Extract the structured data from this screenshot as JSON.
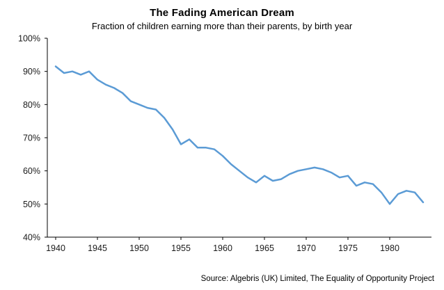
{
  "chart_data": {
    "type": "line",
    "title": "The Fading American Dream",
    "subtitle": "Fraction of children earning more than their  parents, by birth year",
    "source": "Source: Algebris (UK) Limited, The Equality of Opportunity Project",
    "xlabel": "",
    "ylabel": "",
    "x": [
      1940,
      1941,
      1942,
      1943,
      1944,
      1945,
      1946,
      1947,
      1948,
      1949,
      1950,
      1951,
      1952,
      1953,
      1954,
      1955,
      1956,
      1957,
      1958,
      1959,
      1960,
      1961,
      1962,
      1963,
      1964,
      1965,
      1966,
      1967,
      1968,
      1969,
      1970,
      1971,
      1972,
      1973,
      1974,
      1975,
      1976,
      1977,
      1978,
      1979,
      1980,
      1981,
      1982,
      1983,
      1984
    ],
    "series": [
      {
        "name": "Fraction of children earning more than their parents",
        "values": [
          91.5,
          89.5,
          90,
          89,
          90,
          87.5,
          86,
          85,
          83.5,
          81,
          80,
          79,
          78.5,
          76,
          72.5,
          68,
          69.5,
          67,
          67,
          66.5,
          64.5,
          62,
          60,
          58,
          56.5,
          58.5,
          57,
          57.5,
          59,
          60,
          60.5,
          61,
          60.5,
          59.5,
          58,
          58.5,
          55.5,
          56.5,
          56,
          53.5,
          50,
          53,
          54,
          53.5,
          50.5
        ]
      }
    ],
    "ylim": [
      40,
      100
    ],
    "yticks": [
      40,
      50,
      60,
      70,
      80,
      90,
      100
    ],
    "ytick_labels": [
      "40%",
      "50%",
      "60%",
      "70%",
      "80%",
      "90%",
      "100%"
    ],
    "xticks": [
      1940,
      1945,
      1950,
      1955,
      1960,
      1965,
      1970,
      1975,
      1980
    ],
    "xlim_display": [
      1939,
      1985
    ],
    "grid": false,
    "legend_position": "none",
    "line_color": "#5b9bd5",
    "axis_color": "#000000",
    "tick_label_color": "#1a1a1a"
  }
}
